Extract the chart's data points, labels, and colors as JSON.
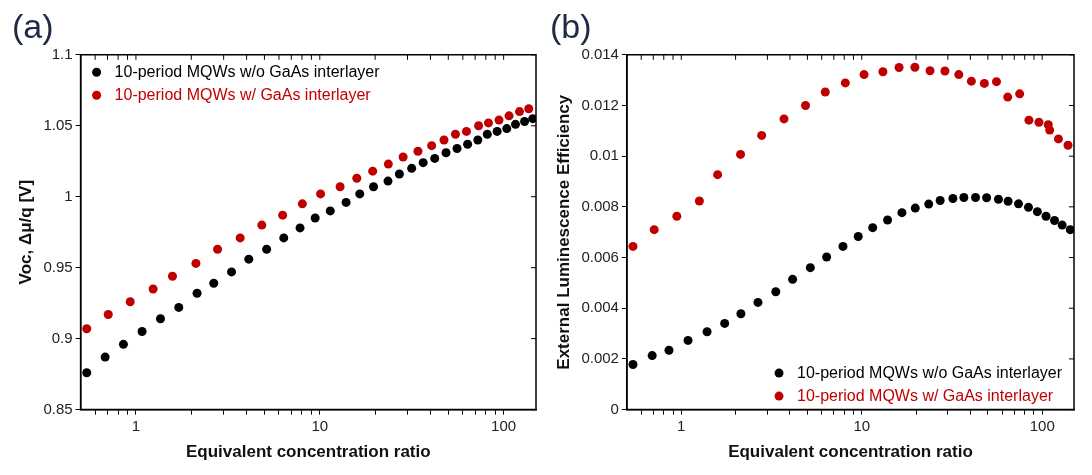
{
  "chart_data": [
    {
      "type": "scatter",
      "title": "(a)",
      "xlabel": "Equivalent concentration ratio",
      "ylabel": "Voc, Δμ/q [V]",
      "log": "x",
      "grid": false,
      "legend": "top left",
      "marker": "circle",
      "xlim": [
        0.5,
        150
      ],
      "ylim": [
        0.85,
        1.1
      ],
      "xticks": [
        {
          "value": 0.6,
          "label": null
        },
        {
          "value": 0.7,
          "label": null
        },
        {
          "value": 0.8,
          "label": null
        },
        {
          "value": 0.9,
          "label": null
        },
        1,
        {
          "value": 2,
          "label": null
        },
        {
          "value": 3,
          "label": null
        },
        {
          "value": 4,
          "label": null
        },
        {
          "value": 5,
          "label": null
        },
        {
          "value": 6,
          "label": null
        },
        {
          "value": 7,
          "label": null
        },
        {
          "value": 8,
          "label": null
        },
        {
          "value": 9,
          "label": null
        },
        10,
        {
          "value": 20,
          "label": null
        },
        {
          "value": 30,
          "label": null
        },
        {
          "value": 40,
          "label": null
        },
        {
          "value": 50,
          "label": null
        },
        {
          "value": 60,
          "label": null
        },
        {
          "value": 70,
          "label": null
        },
        {
          "value": 80,
          "label": null
        },
        {
          "value": 90,
          "label": null
        },
        100
      ],
      "yticks": [
        0.85,
        0.9,
        0.95,
        1,
        1.05,
        1.1
      ],
      "series": [
        {
          "name": "10-period MQWs w/o GaAs interlayer",
          "color": "#000000",
          "x": [
            0.54,
            0.68,
            0.855,
            1.08,
            1.36,
            1.71,
            2.15,
            2.65,
            3.31,
            4.11,
            5.14,
            6.37,
            7.81,
            9.44,
            11.4,
            13.9,
            16.5,
            19.6,
            23.5,
            27.1,
            31.6,
            36.5,
            42.2,
            48.6,
            55.8,
            63.7,
            72.4,
            81.5,
            92.2,
            104,
            116,
            130,
            144
          ],
          "values": [
            0.876,
            0.887,
            0.896,
            0.905,
            0.914,
            0.922,
            0.932,
            0.939,
            0.947,
            0.956,
            0.963,
            0.971,
            0.978,
            0.985,
            0.99,
            0.996,
            1.002,
            1.007,
            1.011,
            1.016,
            1.02,
            1.024,
            1.027,
            1.031,
            1.034,
            1.037,
            1.04,
            1.044,
            1.046,
            1.048,
            1.051,
            1.053,
            1.055
          ]
        },
        {
          "name": "10-period MQWs w/ GaAs interlayer",
          "color": "#c00000",
          "x": [
            0.54,
            0.707,
            0.931,
            1.24,
            1.58,
            2.12,
            2.78,
            3.69,
            4.84,
            6.28,
            8.04,
            10.1,
            12.9,
            15.9,
            19.4,
            23.6,
            28.4,
            34.2,
            40.6,
            47.4,
            54.7,
            62.8,
            73.1,
            82.7,
            94.4,
            107,
            122,
            137
          ],
          "values": [
            0.907,
            0.917,
            0.926,
            0.935,
            0.944,
            0.953,
            0.963,
            0.971,
            0.98,
            0.987,
            0.995,
            1.002,
            1.007,
            1.013,
            1.018,
            1.023,
            1.028,
            1.032,
            1.036,
            1.04,
            1.044,
            1.046,
            1.05,
            1.052,
            1.054,
            1.057,
            1.06,
            1.062
          ]
        }
      ]
    },
    {
      "type": "scatter",
      "title": "(b)",
      "xlabel": "Equivalent concentration ratio",
      "ylabel": "External Luminescence Efficiency",
      "log": "x",
      "grid": false,
      "legend": "bottom right",
      "marker": "circle",
      "xlim": [
        0.5,
        150
      ],
      "ylim": [
        0,
        0.014
      ],
      "xticks": [
        {
          "value": 0.6,
          "label": null
        },
        {
          "value": 0.7,
          "label": null
        },
        {
          "value": 0.8,
          "label": null
        },
        {
          "value": 0.9,
          "label": null
        },
        1,
        {
          "value": 2,
          "label": null
        },
        {
          "value": 3,
          "label": null
        },
        {
          "value": 4,
          "label": null
        },
        {
          "value": 5,
          "label": null
        },
        {
          "value": 6,
          "label": null
        },
        {
          "value": 7,
          "label": null
        },
        {
          "value": 8,
          "label": null
        },
        {
          "value": 9,
          "label": null
        },
        10,
        {
          "value": 20,
          "label": null
        },
        {
          "value": 30,
          "label": null
        },
        {
          "value": 40,
          "label": null
        },
        {
          "value": 50,
          "label": null
        },
        {
          "value": 60,
          "label": null
        },
        {
          "value": 70,
          "label": null
        },
        {
          "value": 80,
          "label": null
        },
        {
          "value": 90,
          "label": null
        },
        100
      ],
      "yticks": [
        0,
        0.002,
        0.004,
        0.006,
        0.008,
        0.01,
        0.012,
        0.014
      ],
      "series": [
        {
          "name": "10-period MQWs w/o GaAs interlayer",
          "color": "#000000",
          "x": [
            0.54,
            0.69,
            0.855,
            1.09,
            1.39,
            1.74,
            2.14,
            2.66,
            3.34,
            4.14,
            5.19,
            6.39,
            7.87,
            9.56,
            11.5,
            13.9,
            16.7,
            19.8,
            23.5,
            27.2,
            32,
            36.8,
            42.7,
            49.2,
            57.2,
            64.7,
            73.9,
            83.9,
            94,
            105,
            117,
            129,
            143
          ],
          "values": [
            0.00178,
            0.00213,
            0.00234,
            0.00273,
            0.00307,
            0.0034,
            0.00378,
            0.00423,
            0.00465,
            0.00514,
            0.0056,
            0.00602,
            0.00644,
            0.00683,
            0.00718,
            0.00748,
            0.00777,
            0.00795,
            0.00811,
            0.00825,
            0.00833,
            0.00837,
            0.00837,
            0.00836,
            0.0083,
            0.00822,
            0.00812,
            0.00798,
            0.00781,
            0.00763,
            0.00746,
            0.00728,
            0.0071
          ]
        },
        {
          "name": "10-period MQWs w/ GaAs interlayer",
          "color": "#c00000",
          "x": [
            0.54,
            0.708,
            0.945,
            1.26,
            1.59,
            2.13,
            2.79,
            3.71,
            4.88,
            6.28,
            8.11,
            10.3,
            13.1,
            16.1,
            19.7,
            23.9,
            28.9,
            34.5,
            40.5,
            47.8,
            55.8,
            64.4,
            75,
            84.4,
            95.9,
            108,
            110,
            123,
            139
          ],
          "values": [
            0.00644,
            0.0071,
            0.00763,
            0.00823,
            0.00927,
            0.01007,
            0.01082,
            0.01147,
            0.012,
            0.01253,
            0.01289,
            0.01322,
            0.01333,
            0.0135,
            0.01351,
            0.01337,
            0.01336,
            0.01322,
            0.01296,
            0.01287,
            0.01294,
            0.01233,
            0.01246,
            0.01142,
            0.01134,
            0.01124,
            0.01103,
            0.01068,
            0.01043
          ]
        }
      ]
    }
  ]
}
